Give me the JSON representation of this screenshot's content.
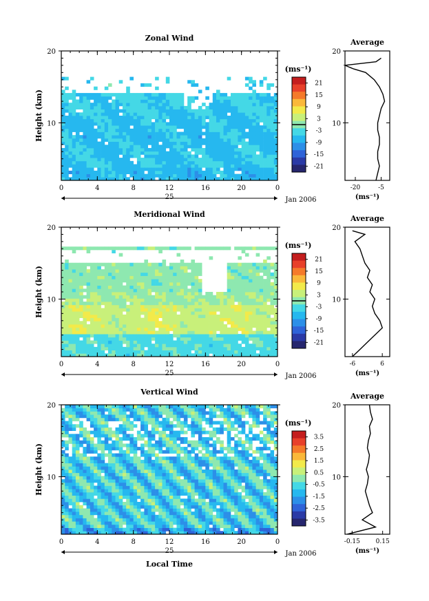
{
  "chart_data": [
    {
      "type": "heatmap",
      "title": "Zonal Wind",
      "ylabel": "Height (km)",
      "xlabel": "",
      "unit_label": "(ms⁻¹)",
      "x_ticks": [
        "0",
        "4",
        "8",
        "12",
        "16",
        "20",
        "0"
      ],
      "day_label": "25",
      "month_label": "Jan 2006",
      "y_ticks": [
        "20",
        "10"
      ],
      "ylim": [
        2,
        20
      ],
      "colorbar_ticks": [
        "21",
        "15",
        "9",
        "3",
        "-3",
        "-9",
        "-15",
        "-21"
      ],
      "colorbar_range": [
        -24,
        24
      ],
      "colorbar_zero_line": 0,
      "data_top_km": 16.5,
      "avg_title": "Average",
      "avg_x_ticks": [
        "-20",
        "-5"
      ],
      "avg_xlim": [
        -26,
        0
      ],
      "avg_profile": {
        "height": [
          2,
          3,
          4,
          5,
          6,
          7,
          8,
          9,
          10,
          11,
          12,
          13,
          14,
          15,
          16,
          17,
          17.5,
          18,
          18.5,
          19
        ],
        "value": [
          -8,
          -7,
          -6,
          -7,
          -7,
          -6,
          -6,
          -7,
          -7,
          -6,
          -5,
          -3,
          -4,
          -6,
          -9,
          -14,
          -21,
          -26,
          -8,
          -5
        ]
      }
    },
    {
      "type": "heatmap",
      "title": "Meridional Wind",
      "ylabel": "Height (km)",
      "xlabel": "",
      "unit_label": "(ms⁻¹)",
      "x_ticks": [
        "0",
        "4",
        "8",
        "12",
        "16",
        "20",
        "0"
      ],
      "day_label": "25",
      "month_label": "Jan 2006",
      "y_ticks": [
        "20",
        "10"
      ],
      "ylim": [
        2,
        20
      ],
      "colorbar_ticks": [
        "21",
        "15",
        "9",
        "3",
        "-3",
        "-9",
        "-15",
        "-21"
      ],
      "colorbar_range": [
        -24,
        24
      ],
      "colorbar_zero_line": 0,
      "data_top_km": 17.5,
      "avg_title": "Average",
      "avg_x_ticks": [
        "-6",
        "6"
      ],
      "avg_xlim": [
        -9,
        9
      ],
      "avg_profile": {
        "height": [
          2,
          3,
          4,
          5,
          6,
          7,
          8,
          9,
          10,
          11,
          12,
          13,
          14,
          15,
          16,
          17,
          18,
          19,
          19.5
        ],
        "value": [
          -6,
          -3,
          0,
          3,
          6,
          5,
          3,
          2,
          3,
          1,
          2,
          0,
          1,
          -1,
          -2,
          -3,
          -5,
          -1,
          -6
        ]
      }
    },
    {
      "type": "heatmap",
      "title": "Vertical Wind",
      "ylabel": "Height (km)",
      "xlabel": "Local Time",
      "unit_label": "(ms⁻¹)",
      "x_ticks": [
        "0",
        "4",
        "8",
        "12",
        "16",
        "20",
        "0"
      ],
      "day_label": "25",
      "month_label": "Jan 2006",
      "y_ticks": [
        "20",
        "10"
      ],
      "ylim": [
        2,
        20
      ],
      "colorbar_ticks": [
        "3.5",
        "2.5",
        "1.5",
        "0.5",
        "-0.5",
        "-1.5",
        "-2.5",
        "-3.5"
      ],
      "colorbar_range": [
        -4,
        4
      ],
      "colorbar_zero_line": null,
      "data_top_km": 20,
      "avg_title": "Average",
      "avg_x_ticks": [
        "-0.15",
        "0.15"
      ],
      "avg_xlim": [
        -0.22,
        0.22
      ],
      "avg_profile": {
        "height": [
          2,
          3,
          4,
          5,
          6,
          7,
          8,
          9,
          10,
          11,
          12,
          13,
          14,
          15,
          16,
          17,
          18,
          19,
          20
        ],
        "value": [
          -0.2,
          0.08,
          -0.05,
          0.05,
          0.02,
          0.0,
          -0.02,
          0.0,
          0.01,
          -0.01,
          0.01,
          0.02,
          0.0,
          0.01,
          0.03,
          0.02,
          0.05,
          0.03,
          0.02
        ]
      }
    }
  ]
}
